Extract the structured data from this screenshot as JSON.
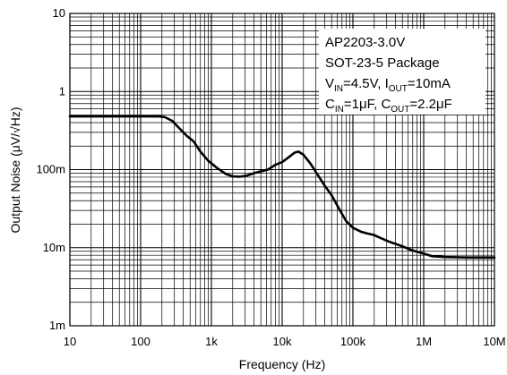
{
  "chart_data": {
    "type": "line",
    "x_scale": "log",
    "y_scale": "log",
    "xlim": [
      10,
      10000000
    ],
    "ylim": [
      0.001,
      10
    ],
    "grid": true,
    "xlabel": "Frequency (Hz)",
    "ylabel": "Output Noise (μV/√Hz)",
    "x_ticks": [
      {
        "value": 10,
        "label": "10"
      },
      {
        "value": 100,
        "label": "100"
      },
      {
        "value": 1000,
        "label": "1k"
      },
      {
        "value": 10000,
        "label": "10k"
      },
      {
        "value": 100000,
        "label": "100k"
      },
      {
        "value": 1000000,
        "label": "1M"
      },
      {
        "value": 10000000,
        "label": "10M"
      }
    ],
    "y_ticks": [
      {
        "value": 0.001,
        "label": "1m"
      },
      {
        "value": 0.01,
        "label": "10m"
      },
      {
        "value": 0.1,
        "label": "100m"
      },
      {
        "value": 1,
        "label": "1"
      },
      {
        "value": 10,
        "label": "10"
      }
    ],
    "annotation": {
      "line1": "AP2203-3.0V",
      "line2": "SOT-23-5 Package",
      "vin_sym": "V",
      "vin_sub": "IN",
      "vin_val": "=4.5V, ",
      "iout_sym": "I",
      "iout_sub": "OUT",
      "iout_val": "=10mA",
      "cin_sym": "C",
      "cin_sub": "IN",
      "cin_val": "=1μF, ",
      "cout_sym": "C",
      "cout_sub": "OUT",
      "cout_val": "=2.2μF"
    },
    "series": [
      {
        "color": "#000000",
        "points": [
          [
            10,
            0.48
          ],
          [
            30,
            0.48
          ],
          [
            100,
            0.48
          ],
          [
            180,
            0.48
          ],
          [
            220,
            0.47
          ],
          [
            280,
            0.42
          ],
          [
            350,
            0.34
          ],
          [
            450,
            0.27
          ],
          [
            560,
            0.23
          ],
          [
            700,
            0.17
          ],
          [
            900,
            0.13
          ],
          [
            1200,
            0.105
          ],
          [
            1600,
            0.088
          ],
          [
            2000,
            0.082
          ],
          [
            2500,
            0.081
          ],
          [
            3200,
            0.084
          ],
          [
            4000,
            0.09
          ],
          [
            5000,
            0.095
          ],
          [
            6300,
            0.1
          ],
          [
            8000,
            0.115
          ],
          [
            10000,
            0.125
          ],
          [
            12500,
            0.145
          ],
          [
            15000,
            0.165
          ],
          [
            17000,
            0.17
          ],
          [
            20000,
            0.155
          ],
          [
            25000,
            0.12
          ],
          [
            32000,
            0.085
          ],
          [
            40000,
            0.062
          ],
          [
            50000,
            0.047
          ],
          [
            63000,
            0.032
          ],
          [
            80000,
            0.022
          ],
          [
            100000,
            0.018
          ],
          [
            130000,
            0.016
          ],
          [
            160000,
            0.0152
          ],
          [
            200000,
            0.0145
          ],
          [
            250000,
            0.0132
          ],
          [
            320000,
            0.012
          ],
          [
            400000,
            0.0112
          ],
          [
            500000,
            0.0104
          ],
          [
            700000,
            0.0092
          ],
          [
            1000000,
            0.0084
          ],
          [
            1300000,
            0.0078
          ],
          [
            2000000,
            0.0076
          ],
          [
            4000000,
            0.0075
          ],
          [
            10000000,
            0.0075
          ]
        ]
      }
    ]
  }
}
